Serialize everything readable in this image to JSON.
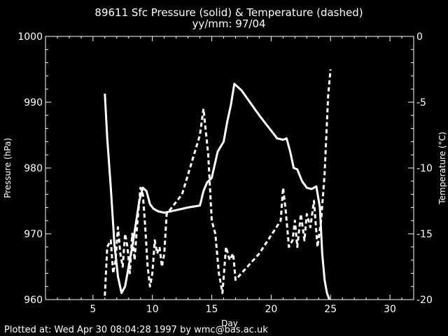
{
  "chart_data": {
    "type": "line",
    "title": "89611 Sfc Pressure (solid) & Temperature (dashed)",
    "subtitle": "yy/mm: 97/04",
    "xlabel": "Day",
    "ylabel_left": "Pressure (hPa)",
    "ylabel_right": "Temperature (°C)",
    "xlim": [
      1,
      32
    ],
    "ylim_left": [
      960,
      1000
    ],
    "ylim_right": [
      -20,
      0
    ],
    "xticks": [
      "5",
      "10",
      "15",
      "20",
      "25",
      "30"
    ],
    "yticks_left": [
      "960",
      "970",
      "980",
      "990",
      "1000"
    ],
    "yticks_right": [
      "-20",
      "-15",
      "-10",
      "-5",
      "0"
    ],
    "grid": false,
    "background": "#000000",
    "line_color": "#ffffff",
    "series": [
      {
        "axis": "left",
        "style": "solid",
        "x": [
          6.0,
          6.2,
          6.5,
          6.8,
          7.1,
          7.4,
          7.7,
          8.0,
          8.3,
          8.6,
          8.9,
          9.2,
          9.5,
          9.8,
          10.1,
          10.5,
          11.0,
          12.0,
          13.0,
          14.0,
          14.3,
          14.6,
          15.0,
          15.5,
          16.0,
          16.3,
          16.6,
          16.9,
          17.5,
          19.0,
          20.5,
          21.0,
          21.3,
          21.6,
          21.9,
          22.2,
          22.6,
          23.0,
          23.4,
          23.8,
          24.1,
          24.3,
          24.5,
          24.7,
          24.9
        ],
        "y": [
          991.3,
          984.5,
          977.0,
          968.5,
          963.5,
          961.0,
          962.0,
          965.0,
          968.0,
          971.5,
          975.0,
          977.0,
          976.5,
          974.5,
          973.8,
          973.4,
          973.2,
          973.6,
          974.0,
          974.3,
          976.5,
          977.8,
          978.5,
          982.5,
          984.0,
          987.0,
          989.5,
          992.8,
          991.8,
          988.0,
          984.5,
          984.3,
          984.5,
          982.5,
          980.0,
          979.8,
          978.0,
          977.0,
          976.8,
          977.2,
          974.0,
          967.0,
          963.0,
          961.0,
          959.5
        ]
      },
      {
        "axis": "right",
        "style": "dashed",
        "x": [
          6.0,
          6.2,
          6.5,
          6.7,
          6.9,
          7.1,
          7.3,
          7.5,
          7.7,
          7.9,
          8.1,
          8.3,
          8.5,
          8.7,
          9.0,
          9.2,
          9.4,
          9.6,
          9.8,
          10.0,
          10.2,
          10.4,
          10.6,
          10.8,
          11.0,
          11.2,
          12.5,
          14.0,
          14.3,
          14.7,
          15.0,
          15.3,
          15.6,
          15.9,
          16.2,
          16.5,
          16.8,
          17.0,
          19.0,
          20.8,
          21.0,
          21.2,
          21.5,
          21.8,
          22.0,
          22.2,
          22.5,
          22.8,
          23.0,
          23.3,
          23.6,
          23.9,
          24.2,
          24.5,
          24.8,
          25.0
        ],
        "y": [
          -19.7,
          -16.0,
          -15.5,
          -18.0,
          -17.0,
          -14.5,
          -16.5,
          -17.5,
          -15.0,
          -16.0,
          -18.0,
          -15.0,
          -17.0,
          -14.5,
          -11.5,
          -12.0,
          -14.5,
          -17.5,
          -19.0,
          -18.0,
          -15.5,
          -16.5,
          -16.0,
          -17.5,
          -16.5,
          -13.5,
          -12.0,
          -7.5,
          -5.5,
          -9.0,
          -14.0,
          -15.0,
          -18.0,
          -19.5,
          -16.0,
          -17.0,
          -16.5,
          -18.5,
          -16.5,
          -14.0,
          -11.5,
          -13.0,
          -16.0,
          -15.5,
          -14.0,
          -16.0,
          -13.5,
          -15.5,
          -13.5,
          -14.5,
          -12.5,
          -16.0,
          -14.0,
          -10.5,
          -4.5,
          -2.5
        ]
      }
    ]
  },
  "footer": "Plotted at: Wed Apr 30 08:04:28 1997 by wmc@bas.ac.uk"
}
